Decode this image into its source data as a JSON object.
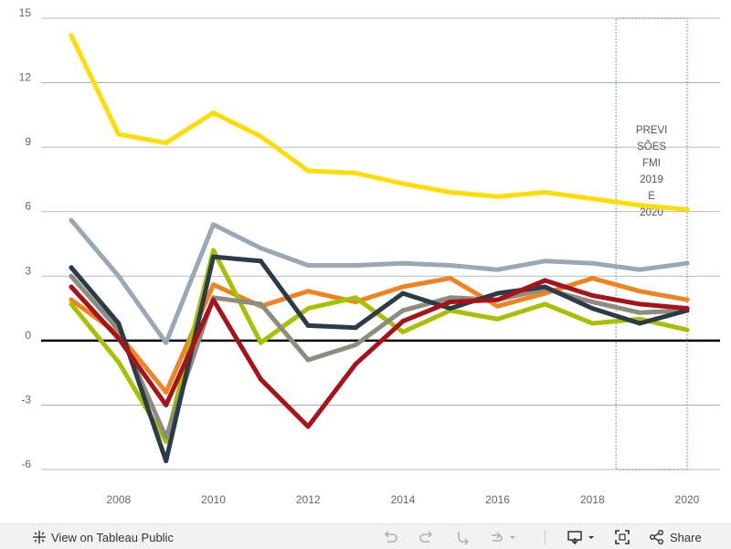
{
  "chart_data": {
    "type": "line",
    "title": "",
    "xlabel": "",
    "ylabel": "",
    "x": [
      2007,
      2008,
      2009,
      2010,
      2011,
      2012,
      2013,
      2014,
      2015,
      2016,
      2017,
      2018,
      2019,
      2020
    ],
    "x_tick_labels": [
      "2008",
      "2010",
      "2012",
      "2014",
      "2016",
      "2018",
      "2020"
    ],
    "y_tick_labels": [
      "15",
      "12",
      "9",
      "6",
      "3",
      "0",
      "-3",
      "-6"
    ],
    "ylim": [
      -6,
      15
    ],
    "xlim": [
      2007,
      2020
    ],
    "grid": true,
    "zero_line": true,
    "series": [
      {
        "color": "#FFDD00",
        "values": [
          14.2,
          9.6,
          9.2,
          10.6,
          9.5,
          7.9,
          7.8,
          7.3,
          6.9,
          6.7,
          6.9,
          6.6,
          6.3,
          6.1
        ]
      },
      {
        "color": "#9AA7B4",
        "values": [
          5.6,
          3.0,
          -0.1,
          5.4,
          4.3,
          3.5,
          3.5,
          3.6,
          3.5,
          3.3,
          3.7,
          3.6,
          3.3,
          3.6
        ]
      },
      {
        "color": "#F08321",
        "values": [
          1.9,
          0.3,
          -2.4,
          2.6,
          1.6,
          2.3,
          1.8,
          2.5,
          2.9,
          1.6,
          2.2,
          2.9,
          2.3,
          1.9
        ]
      },
      {
        "color": "#A8C000",
        "values": [
          1.7,
          -1.0,
          -4.7,
          4.2,
          -0.1,
          1.5,
          2.0,
          0.4,
          1.4,
          1.0,
          1.7,
          0.8,
          1.0,
          0.5
        ]
      },
      {
        "color": "#8C8C80",
        "values": [
          3.0,
          0.5,
          -4.5,
          2.0,
          1.7,
          -0.9,
          -0.2,
          1.4,
          2.0,
          1.9,
          2.4,
          1.8,
          1.3,
          1.4
        ]
      },
      {
        "color": "#2C3B48",
        "values": [
          3.4,
          0.8,
          -5.6,
          3.9,
          3.7,
          0.7,
          0.6,
          2.2,
          1.5,
          2.2,
          2.5,
          1.5,
          0.8,
          1.4
        ]
      },
      {
        "color": "#A8121A",
        "values": [
          2.5,
          0.1,
          -3.0,
          1.9,
          -1.8,
          -4.0,
          -1.1,
          0.9,
          1.8,
          1.9,
          2.8,
          2.1,
          1.7,
          1.5
        ]
      }
    ],
    "annotation": {
      "lines": [
        "PREVI",
        "SÕES",
        "FMI",
        "2019",
        "E",
        "2020"
      ],
      "x_range": [
        2019,
        2020
      ],
      "y_range": [
        -6,
        15
      ]
    }
  },
  "toolbar": {
    "view_label": "View on Tableau Public",
    "share_label": "Share"
  },
  "colors": {
    "grid": "#9AA2B1",
    "zero_line": "#000000",
    "toolbar_bg": "#f2f2f2"
  }
}
